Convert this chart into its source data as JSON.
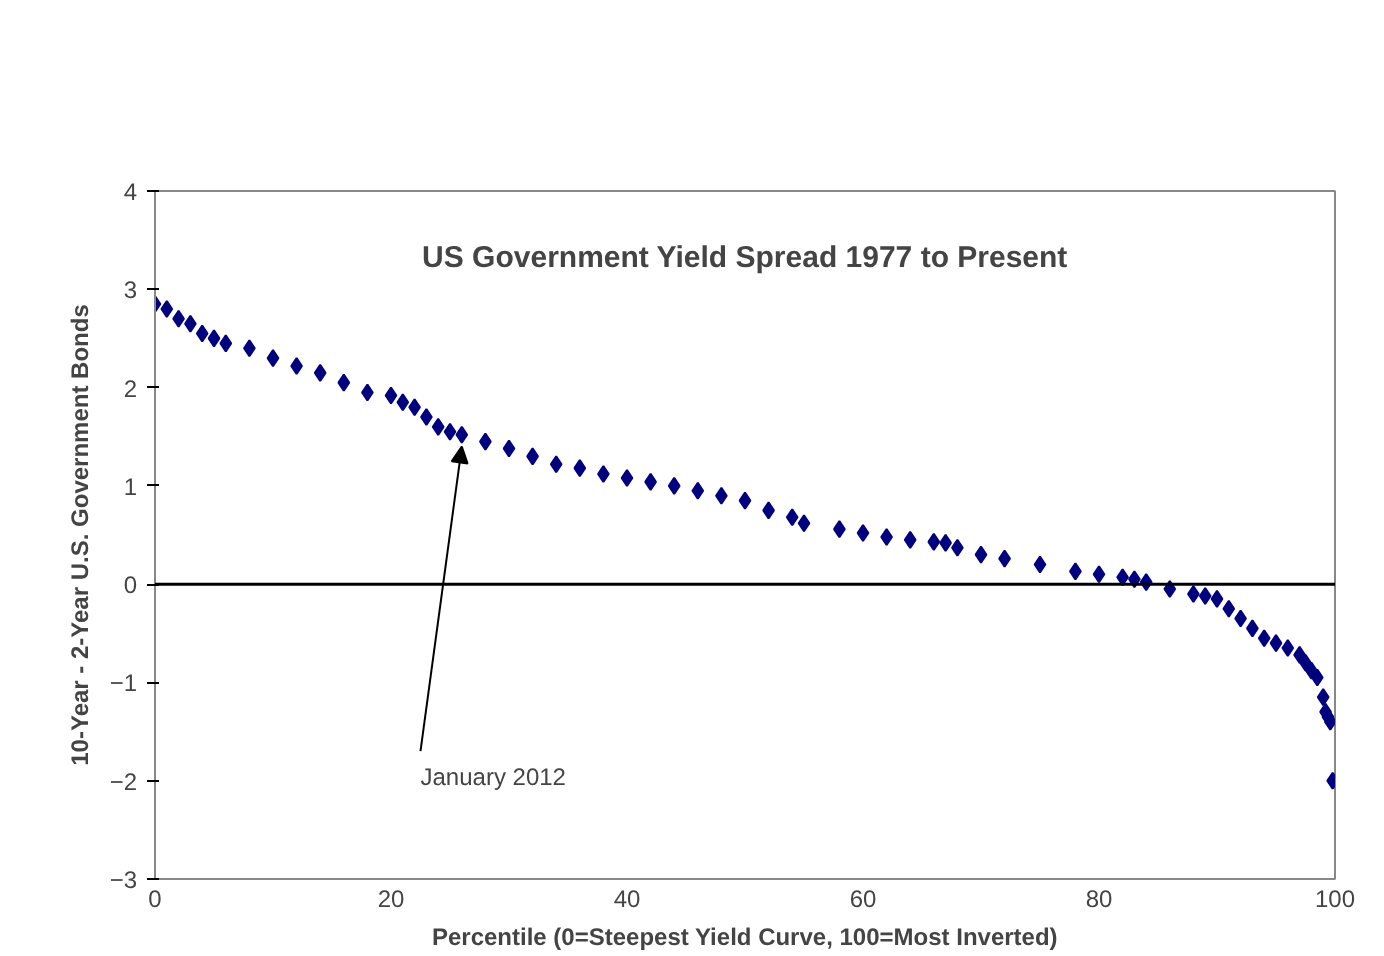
{
  "chart_data": {
    "type": "scatter",
    "title": "US Government Yield Spread 1977 to Present",
    "xlabel": "Percentile (0=Steepest Yield Curve, 100=Most Inverted)",
    "ylabel": "10-Year - 2-Year U.S. Government Bonds",
    "x": [
      0,
      1,
      2,
      3,
      4,
      5,
      6,
      8,
      10,
      12,
      14,
      16,
      18,
      20,
      21,
      22,
      23,
      24,
      25,
      26,
      28,
      30,
      32,
      34,
      36,
      38,
      40,
      42,
      44,
      46,
      48,
      50,
      52,
      54,
      55,
      58,
      60,
      62,
      64,
      66,
      67,
      68,
      70,
      72,
      75,
      78,
      80,
      82,
      83,
      84,
      86,
      88,
      89,
      90,
      91,
      92,
      93,
      94,
      95,
      96,
      97,
      97.5,
      98,
      98.5,
      99,
      99.2,
      99.4,
      99.6,
      99.8
    ],
    "values": [
      2.85,
      2.8,
      2.7,
      2.65,
      2.55,
      2.5,
      2.45,
      2.4,
      2.3,
      2.22,
      2.15,
      2.05,
      1.95,
      1.92,
      1.85,
      1.8,
      1.7,
      1.6,
      1.55,
      1.52,
      1.45,
      1.38,
      1.3,
      1.22,
      1.18,
      1.12,
      1.08,
      1.04,
      1.0,
      0.95,
      0.9,
      0.85,
      0.75,
      0.68,
      0.62,
      0.56,
      0.52,
      0.48,
      0.45,
      0.43,
      0.42,
      0.37,
      0.3,
      0.26,
      0.2,
      0.13,
      0.1,
      0.07,
      0.05,
      0.02,
      -0.05,
      -0.1,
      -0.12,
      -0.15,
      -0.25,
      -0.35,
      -0.45,
      -0.55,
      -0.6,
      -0.65,
      -0.72,
      -0.8,
      -0.88,
      -0.95,
      -1.15,
      -1.3,
      -1.35,
      -1.4,
      -2.0
    ],
    "color": "#00007f",
    "marker": "diamond",
    "xlim": [
      0,
      100
    ],
    "xticks": [
      0,
      20,
      40,
      60,
      80,
      100
    ],
    "ylim": [
      -3,
      4
    ],
    "yticks": [
      -3,
      -2,
      -1,
      0,
      1,
      2,
      3,
      4
    ],
    "grid": false,
    "ref_lines": [
      {
        "axis": "y",
        "value": 0,
        "color": "#000000"
      }
    ],
    "annotations": [
      {
        "text": "January 2012",
        "x": 26,
        "y": 1.5
      }
    ]
  }
}
